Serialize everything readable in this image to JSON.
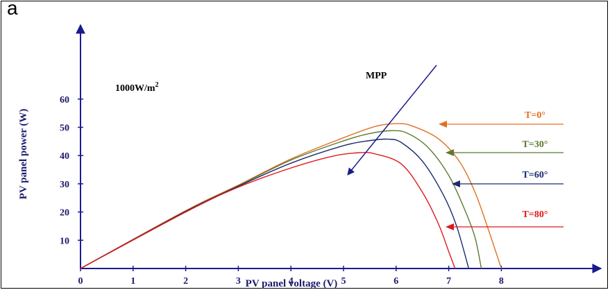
{
  "panel_letter": "a",
  "chart_data": {
    "type": "line",
    "xlabel": "PV panel voltage (V)",
    "ylabel": "PV panel power (W)",
    "xlim": [
      0,
      9.5
    ],
    "ylim": [
      0,
      72
    ],
    "x_ticks": [
      0,
      1,
      2,
      3,
      4,
      5,
      6,
      7,
      8
    ],
    "y_ticks": [
      10,
      20,
      30,
      40,
      50,
      60
    ],
    "irradiance_label": "1000W/m",
    "irradiance_sup": "2",
    "mpp_label": "MPP",
    "series": [
      {
        "name": "T=0°",
        "color": "#e07020",
        "points": [
          [
            0,
            0
          ],
          [
            2,
            20.5
          ],
          [
            3,
            29.5
          ],
          [
            4,
            38.8
          ],
          [
            5,
            46.3
          ],
          [
            5.6,
            50.3
          ],
          [
            6.0,
            51.3
          ],
          [
            6.3,
            50.5
          ],
          [
            6.8,
            46
          ],
          [
            7.2,
            38
          ],
          [
            7.5,
            27
          ],
          [
            7.75,
            14
          ],
          [
            8.0,
            0
          ]
        ]
      },
      {
        "name": "T=30°",
        "color": "#5a7a30",
        "points": [
          [
            0,
            0
          ],
          [
            2,
            20.3
          ],
          [
            3,
            29.3
          ],
          [
            4,
            38.4
          ],
          [
            5,
            45.2
          ],
          [
            5.5,
            47.8
          ],
          [
            5.9,
            48.8
          ],
          [
            6.2,
            48
          ],
          [
            6.6,
            43
          ],
          [
            7.0,
            33
          ],
          [
            7.3,
            21
          ],
          [
            7.5,
            11
          ],
          [
            7.62,
            0
          ]
        ]
      },
      {
        "name": "T=60°",
        "color": "#1a2a6e",
        "points": [
          [
            0,
            0
          ],
          [
            2,
            20.2
          ],
          [
            3,
            29.1
          ],
          [
            4,
            37.3
          ],
          [
            5,
            43.5
          ],
          [
            5.5,
            45.3
          ],
          [
            5.85,
            45.8
          ],
          [
            6.1,
            44.6
          ],
          [
            6.5,
            38
          ],
          [
            6.9,
            26
          ],
          [
            7.15,
            15
          ],
          [
            7.38,
            0
          ]
        ]
      },
      {
        "name": "T=80°",
        "color": "#e01818",
        "points": [
          [
            0,
            0
          ],
          [
            2,
            20
          ],
          [
            3,
            28.8
          ],
          [
            4,
            35.6
          ],
          [
            4.8,
            39.8
          ],
          [
            5.3,
            41
          ],
          [
            5.6,
            40.6
          ],
          [
            6.1,
            37
          ],
          [
            6.5,
            27
          ],
          [
            6.8,
            16
          ],
          [
            7.0,
            6
          ],
          [
            7.12,
            0
          ]
        ]
      }
    ],
    "grid": false,
    "legend": "right"
  }
}
